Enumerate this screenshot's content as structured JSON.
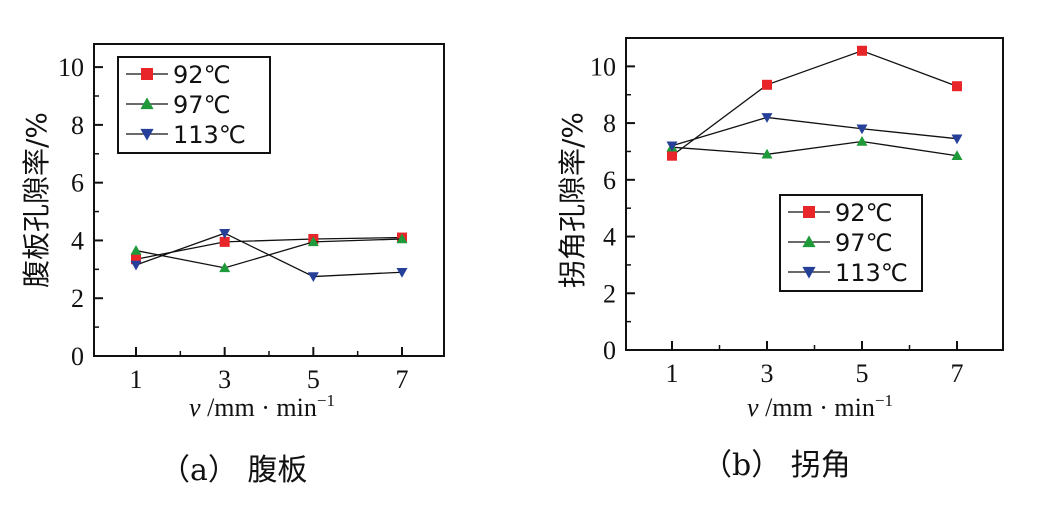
{
  "chart_data": [
    {
      "type": "line",
      "id": "a",
      "caption": "（a） 腹板",
      "ylabel": "腹板孔隙率/%",
      "xlabel_prefix": "v",
      "xlabel_unit": " /mm · min",
      "xlabel_sup": "−1",
      "x": [
        1,
        3,
        5,
        7
      ],
      "xticks": [
        "1",
        "3",
        "5",
        "7"
      ],
      "yticks": [
        "0",
        "2",
        "4",
        "6",
        "8",
        "10"
      ],
      "ylim": [
        0,
        10.8
      ],
      "legend_position": "top-left",
      "series": [
        {
          "name": "92℃",
          "marker": "square",
          "color": "#e8262a",
          "values": [
            3.35,
            3.95,
            4.05,
            4.1
          ]
        },
        {
          "name": "97℃",
          "marker": "triangle-up",
          "color": "#1f9a3a",
          "values": [
            3.65,
            3.05,
            3.95,
            4.05
          ]
        },
        {
          "name": "113℃",
          "marker": "triangle-down",
          "color": "#26409a",
          "values": [
            3.15,
            4.25,
            2.75,
            2.9
          ]
        }
      ]
    },
    {
      "type": "line",
      "id": "b",
      "caption": "（b） 拐角",
      "ylabel": "拐角孔隙率/%",
      "xlabel_prefix": "v",
      "xlabel_unit": " /mm · min",
      "xlabel_sup": "−1",
      "x": [
        1,
        3,
        5,
        7
      ],
      "xticks": [
        "1",
        "3",
        "5",
        "7"
      ],
      "yticks": [
        "0",
        "2",
        "4",
        "6",
        "8",
        "10"
      ],
      "ylim": [
        0,
        11.0
      ],
      "legend_position": "lower-center",
      "series": [
        {
          "name": "92℃",
          "marker": "square",
          "color": "#e8262a",
          "values": [
            6.85,
            9.35,
            10.55,
            9.3
          ]
        },
        {
          "name": "97℃",
          "marker": "triangle-up",
          "color": "#1f9a3a",
          "values": [
            7.15,
            6.9,
            7.35,
            6.85
          ]
        },
        {
          "name": "113℃",
          "marker": "triangle-down",
          "color": "#26409a",
          "values": [
            7.2,
            8.2,
            7.8,
            7.45
          ]
        }
      ]
    }
  ]
}
